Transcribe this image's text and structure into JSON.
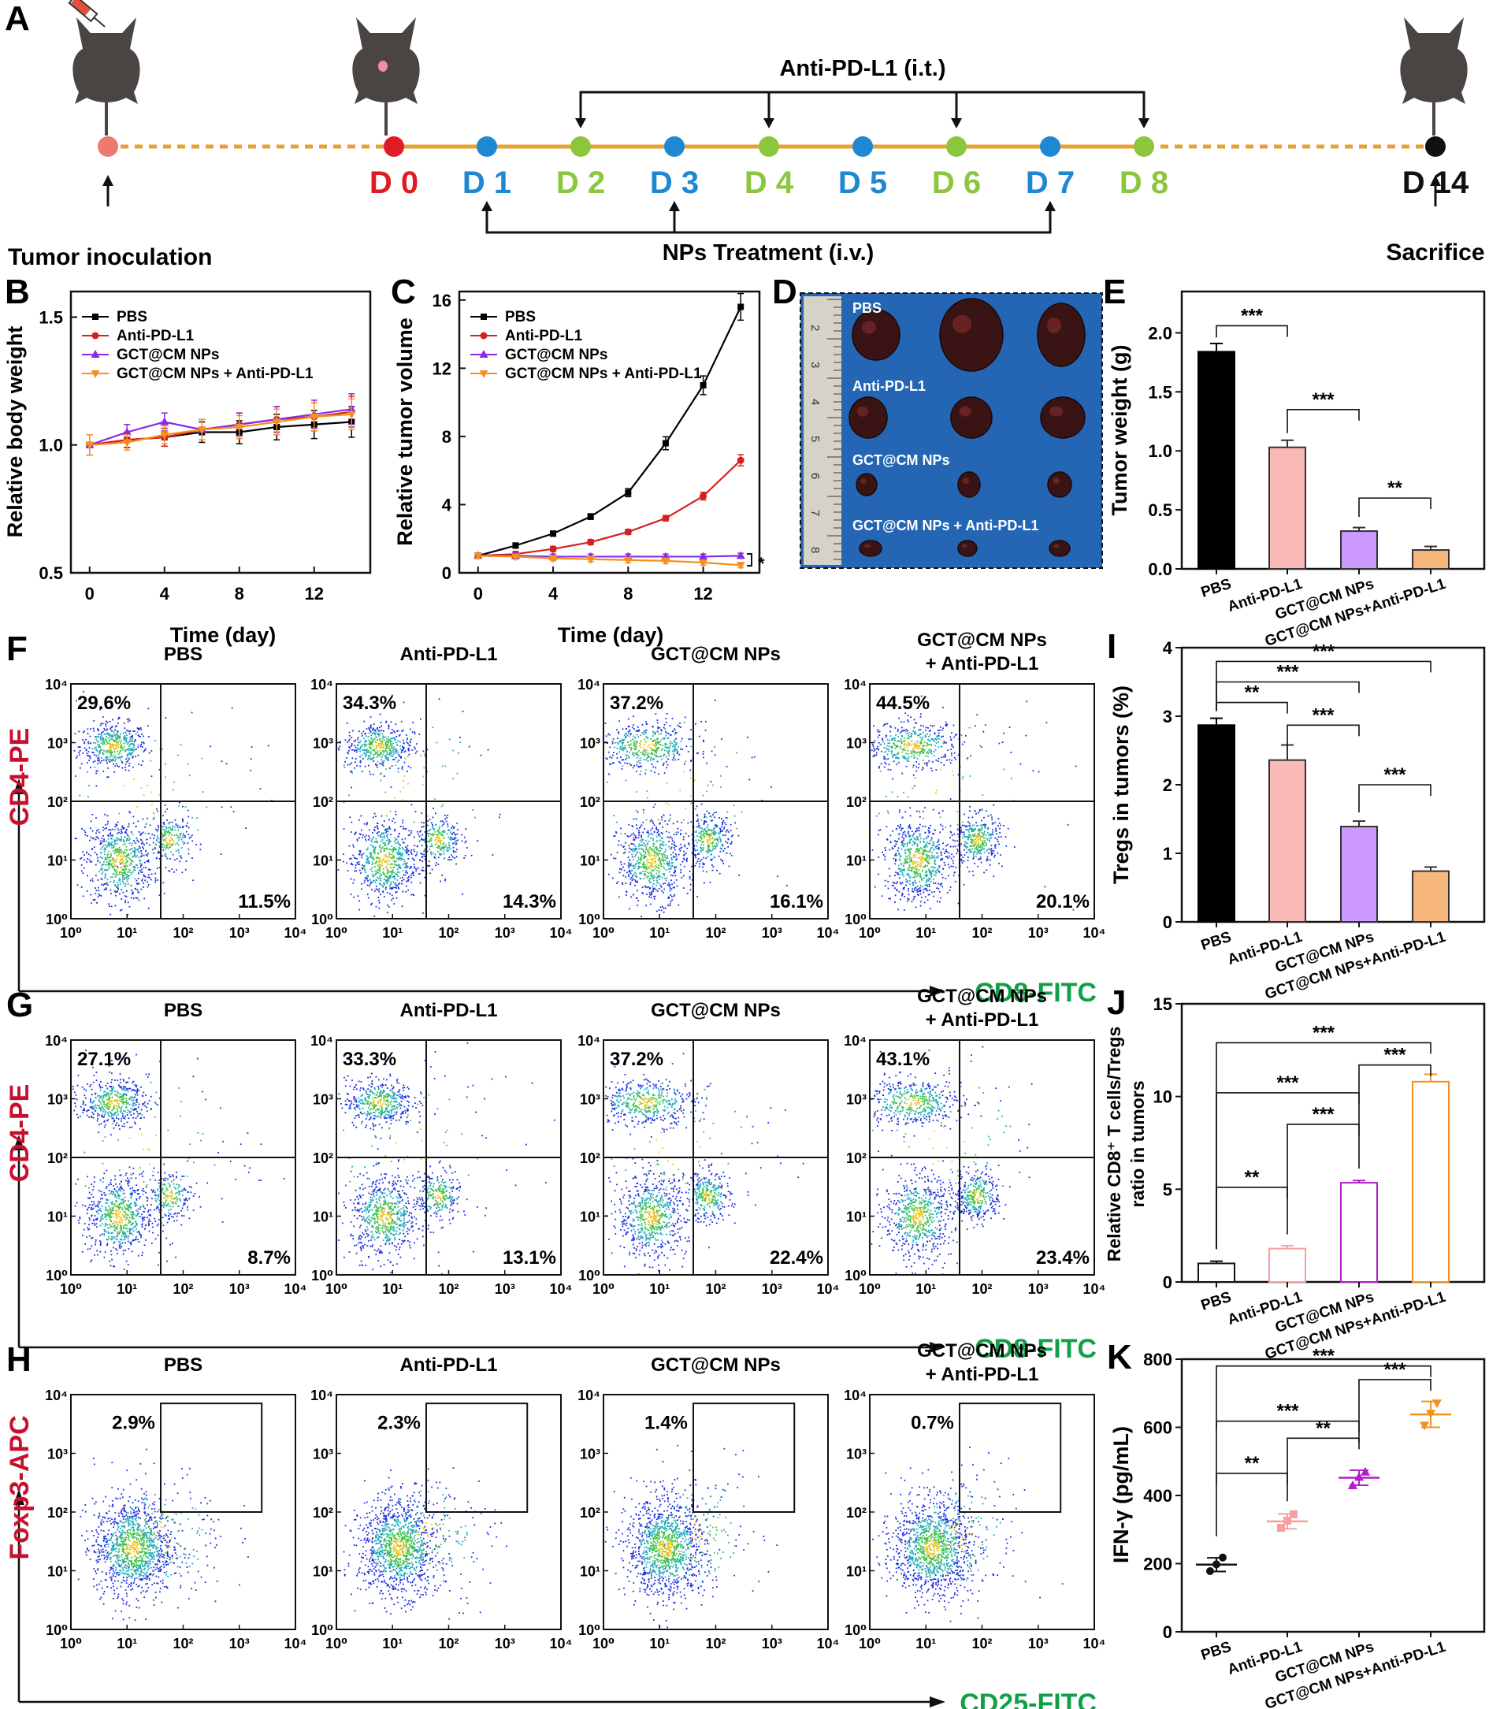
{
  "colors": {
    "day_d0": "#e01b24",
    "day_np": "#1e88d2",
    "day_anti": "#8cc63f",
    "timeline": "#e8a030",
    "pbs": "#000000",
    "anti": "#d42020",
    "gct": "#8a2be2",
    "combo": "#f4901e",
    "bar_anti": "#f9b9b6",
    "bar_gct": "#cc99ff",
    "bar_combo": "#f7b77a",
    "flow_label_red": "#c8102e",
    "flow_label_green": "#139f4a"
  },
  "panelA": {
    "letter": "A",
    "top_label": "Anti-PD-L1 (i.t.)",
    "bottom_label": "NPs Treatment (i.v.)",
    "left_label": "Tumor inoculation",
    "right_label": "Sacrifice",
    "days": [
      "D 0",
      "D 1",
      "D 2",
      "D 3",
      "D 4",
      "D 5",
      "D 6",
      "D 7",
      "D 8",
      "D 14"
    ]
  },
  "panelB": {
    "letter": "B",
    "ylabel": "Relative body weight",
    "xlabel": "Time (day)",
    "yticks": [
      "0.5",
      "1.0",
      "1.5"
    ],
    "xticks": [
      "0",
      "4",
      "8",
      "12"
    ],
    "legend": [
      "PBS",
      "Anti-PD-L1",
      "GCT@CM NPs",
      "GCT@CM NPs + Anti-PD-L1"
    ]
  },
  "panelC": {
    "letter": "C",
    "ylabel": "Relative tumor volume",
    "xlabel": "Time (day)",
    "yticks": [
      "0",
      "4",
      "8",
      "12",
      "16"
    ],
    "xticks": [
      "0",
      "4",
      "8",
      "12"
    ],
    "legend": [
      "PBS",
      "Anti-PD-L1",
      "GCT@CM NPs",
      "GCT@CM NPs + Anti-PD-L1"
    ],
    "sig": "*"
  },
  "panelD": {
    "letter": "D",
    "labels": [
      "PBS",
      "Anti-PD-L1",
      "GCT@CM NPs",
      "GCT@CM NPs + Anti-PD-L1"
    ],
    "ruler": [
      "2",
      "3",
      "4",
      "5",
      "6",
      "7",
      "8"
    ]
  },
  "panelE": {
    "letter": "E",
    "ylabel": "Tumor weight (g)",
    "yticks": [
      "0.0",
      "0.5",
      "1.0",
      "1.5",
      "2.0"
    ],
    "categories": [
      "PBS",
      "Anti-PD-L1",
      "GCT@CM NPs",
      "GCT@CM NPs+Anti-PD-L1"
    ],
    "sig": [
      "***",
      "***",
      "**"
    ]
  },
  "panelF": {
    "letter": "F",
    "ylabel": "CD4-PE",
    "xlabel": "CD8-FITC",
    "titles": [
      "PBS",
      "Anti-PD-L1",
      "GCT@CM NPs",
      "GCT@CM NPs",
      "+ Anti-PD-L1"
    ],
    "upper": [
      "29.6%",
      "34.3%",
      "37.2%",
      "44.5%"
    ],
    "lower": [
      "11.5%",
      "14.3%",
      "16.1%",
      "20.1%"
    ]
  },
  "panelG": {
    "letter": "G",
    "ylabel": "CD4-PE",
    "xlabel": "CD8-FITC",
    "titles": [
      "PBS",
      "Anti-PD-L1",
      "GCT@CM NPs",
      "GCT@CM NPs",
      "+ Anti-PD-L1"
    ],
    "upper": [
      "27.1%",
      "33.3%",
      "37.2%",
      "43.1%"
    ],
    "lower": [
      "8.7%",
      "13.1%",
      "22.4%",
      "23.4%"
    ]
  },
  "panelH": {
    "letter": "H",
    "ylabel": "Foxp3-APC",
    "xlabel": "CD25-FITC",
    "titles": [
      "PBS",
      "Anti-PD-L1",
      "GCT@CM NPs",
      "GCT@CM NPs",
      "+ Anti-PD-L1"
    ],
    "gate": [
      "2.9%",
      "2.3%",
      "1.4%",
      "0.7%"
    ]
  },
  "flow_ticks": {
    "y": [
      "10⁰",
      "10¹",
      "10²",
      "10³",
      "10⁴"
    ],
    "x": [
      "10⁰",
      "10¹",
      "10²",
      "10³",
      "10⁴"
    ]
  },
  "panelI": {
    "letter": "I",
    "ylabel": "Tregs in tumors (%)",
    "yticks": [
      "0",
      "1",
      "2",
      "3",
      "4"
    ],
    "categories": [
      "PBS",
      "Anti-PD-L1",
      "GCT@CM NPs",
      "GCT@CM NPs+Anti-PD-L1"
    ],
    "sig": [
      "***",
      "***",
      "**",
      "***",
      "***"
    ]
  },
  "panelJ": {
    "letter": "J",
    "ylabel1": "Relative CD8⁺ T cells/Tregs",
    "ylabel2": "ratio in tumors",
    "yticks": [
      "0",
      "5",
      "10",
      "15"
    ],
    "categories": [
      "PBS",
      "Anti-PD-L1",
      "GCT@CM NPs",
      "GCT@CM NPs+Anti-PD-L1"
    ],
    "sig": [
      "***",
      "***",
      "***",
      "***",
      "**"
    ]
  },
  "panelK": {
    "letter": "K",
    "ylabel": "IFN-γ (pg/mL)",
    "yticks": [
      "0",
      "200",
      "400",
      "600",
      "800"
    ],
    "categories": [
      "PBS",
      "Anti-PD-L1",
      "GCT@CM NPs",
      "GCT@CM NPs+Anti-PD-L1"
    ],
    "sig": [
      "***",
      "***",
      "***",
      "**",
      "**"
    ]
  },
  "chart_data": [
    {
      "panel": "B",
      "type": "line",
      "x": [
        0,
        2,
        4,
        6,
        8,
        10,
        12,
        14
      ],
      "ylim": [
        0.5,
        1.6
      ],
      "xlim": [
        -1,
        15
      ],
      "series": [
        {
          "name": "PBS",
          "values": [
            1.0,
            1.02,
            1.03,
            1.05,
            1.05,
            1.07,
            1.08,
            1.09
          ]
        },
        {
          "name": "Anti-PD-L1",
          "values": [
            1.0,
            1.02,
            1.03,
            1.06,
            1.08,
            1.1,
            1.11,
            1.13
          ]
        },
        {
          "name": "GCT@CM NPs",
          "values": [
            1.0,
            1.05,
            1.09,
            1.06,
            1.08,
            1.1,
            1.12,
            1.14
          ]
        },
        {
          "name": "GCT@CM NPs + Anti-PD-L1",
          "values": [
            1.0,
            1.01,
            1.04,
            1.06,
            1.07,
            1.09,
            1.11,
            1.12
          ]
        }
      ]
    },
    {
      "panel": "C",
      "type": "line",
      "x": [
        0,
        2,
        4,
        6,
        8,
        10,
        12,
        14
      ],
      "ylim": [
        0,
        16.5
      ],
      "xlim": [
        -1,
        15
      ],
      "series": [
        {
          "name": "PBS",
          "values": [
            1.0,
            1.6,
            2.3,
            3.3,
            4.7,
            7.6,
            11.0,
            15.6
          ]
        },
        {
          "name": "Anti-PD-L1",
          "values": [
            1.0,
            1.1,
            1.4,
            1.8,
            2.4,
            3.2,
            4.5,
            6.6
          ]
        },
        {
          "name": "GCT@CM NPs",
          "values": [
            1.0,
            1.0,
            0.95,
            0.95,
            0.95,
            0.95,
            0.95,
            1.0
          ]
        },
        {
          "name": "GCT@CM NPs + Anti-PD-L1",
          "values": [
            1.0,
            0.95,
            0.85,
            0.8,
            0.75,
            0.7,
            0.6,
            0.45
          ]
        }
      ]
    },
    {
      "panel": "E",
      "type": "bar",
      "categories": [
        "PBS",
        "Anti-PD-L1",
        "GCT@CM NPs",
        "GCT@CM NPs+Anti-PD-L1"
      ],
      "values": [
        1.84,
        1.03,
        0.32,
        0.16
      ],
      "ylim": [
        0,
        2.35
      ]
    },
    {
      "panel": "I",
      "type": "bar",
      "categories": [
        "PBS",
        "Anti-PD-L1",
        "GCT@CM NPs",
        "GCT@CM NPs+Anti-PD-L1"
      ],
      "values": [
        2.87,
        2.36,
        1.39,
        0.74
      ],
      "ylim": [
        0,
        4
      ]
    },
    {
      "panel": "J",
      "type": "bar",
      "categories": [
        "PBS",
        "Anti-PD-L1",
        "GCT@CM NPs",
        "GCT@CM NPs+Anti-PD-L1"
      ],
      "values": [
        1.0,
        1.8,
        5.35,
        10.8
      ],
      "ylim": [
        0,
        15
      ]
    },
    {
      "panel": "K",
      "type": "scatter",
      "categories": [
        "PBS",
        "Anti-PD-L1",
        "GCT@CM NPs",
        "GCT@CM NPs+Anti-PD-L1"
      ],
      "values": [
        197,
        324,
        452,
        638
      ],
      "ylim": [
        0,
        800
      ]
    }
  ]
}
